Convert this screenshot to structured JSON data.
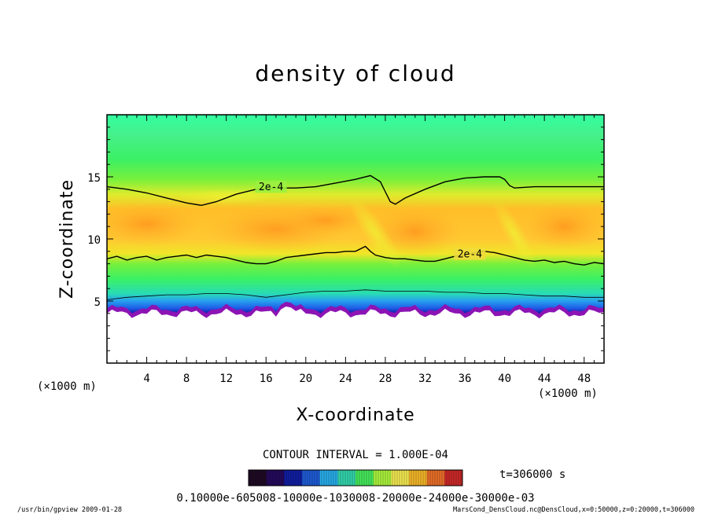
{
  "chart_data": {
    "type": "heatmap",
    "title": "density of cloud",
    "xlabel": "X-coordinate",
    "ylabel": "Z-coordinate",
    "x_unit": "(×1000 m)",
    "y_unit": "(×1000 m)",
    "xlim": [
      0,
      50
    ],
    "ylim": [
      0,
      20
    ],
    "x_ticks": [
      4,
      8,
      12,
      16,
      20,
      24,
      28,
      32,
      36,
      40,
      44,
      48
    ],
    "y_ticks": [
      5,
      10,
      15
    ],
    "contour_interval_text": "CONTOUR INTERVAL = 1.000E-04",
    "contour_interval": 0.0001,
    "contour_labels": [
      "2e-4",
      "2e-4"
    ],
    "time_label": "t=306000 s",
    "colorbar_tick_text": "0.10000e-605008-10000e-1030008-20000e-24000e-30000e-03",
    "colorbar_colors": [
      "#1e0a24",
      "#240a5a",
      "#101ea0",
      "#1e5ad2",
      "#28aae6",
      "#32d2aa",
      "#46e65a",
      "#aaf03c",
      "#f0e650",
      "#f0b428",
      "#e66e28",
      "#c82828"
    ],
    "field_colors": {
      "top": "#32ffa0",
      "green": "#3cf064",
      "yellow_green": "#b4f032",
      "yellow": "#f0e628",
      "orange": "#ffbe28",
      "deep_orange": "#ff9b1e",
      "cyan": "#28dcb4",
      "blue": "#1e5ae6",
      "navy": "#1414a0",
      "purple": "#8c14b4"
    },
    "footer_left": "/usr/bin/gpview   2009-01-28",
    "footer_right": "MarsCond_DensCloud.nc@DensCloud,x=0:50000,z=0:20000,t=306000"
  }
}
